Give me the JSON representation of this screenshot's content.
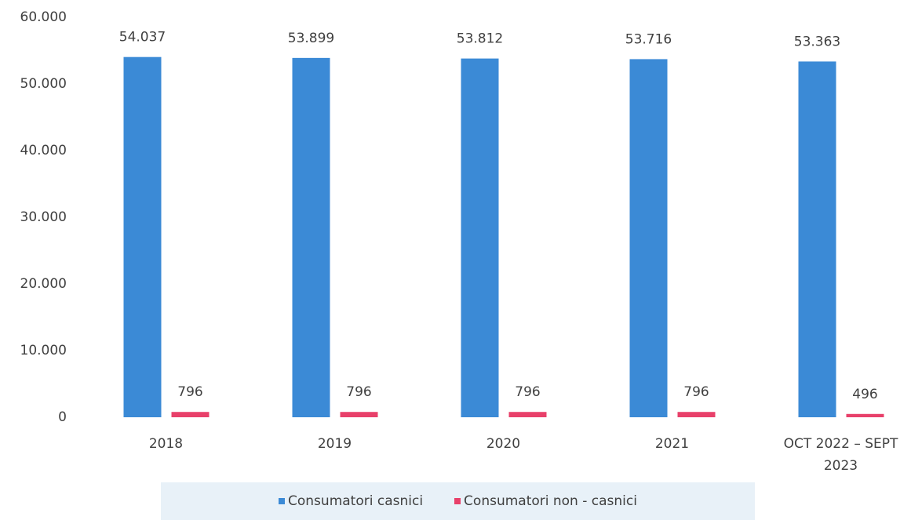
{
  "chart_data": {
    "type": "bar",
    "categories": [
      "2018",
      "2019",
      "2020",
      "2021",
      "OCT 2022 – SEPT 2023"
    ],
    "series": [
      {
        "name": "Consumatori casnici",
        "color": "#3b8ad6",
        "values": [
          54037,
          53899,
          53812,
          53716,
          53363
        ],
        "value_labels": [
          "54.037",
          "53.899",
          "53.812",
          "53.716",
          "53.363"
        ]
      },
      {
        "name": "Consumatori non - casnici",
        "color": "#e8406a",
        "values": [
          796,
          796,
          796,
          796,
          496
        ]
      }
    ],
    "ylim": [
      0,
      60000
    ],
    "yticks": [
      0,
      {
        "value": 10000,
        "label": "10.000"
      },
      {
        "value": 20000,
        "label": "20.000"
      },
      {
        "value": 30000,
        "label": "30.000"
      },
      {
        "value": 40000,
        "label": "40.000"
      },
      {
        "value": 50000,
        "label": "50.000"
      },
      {
        "value": 60000,
        "label": "60.000"
      }
    ],
    "grid": false
  }
}
